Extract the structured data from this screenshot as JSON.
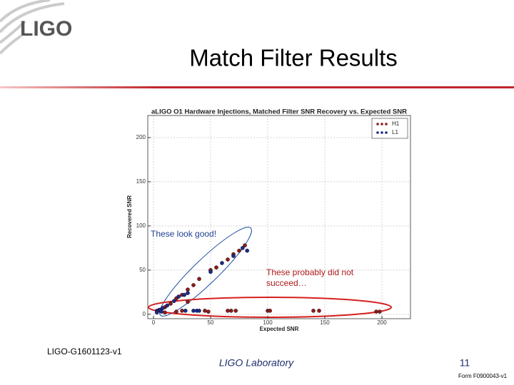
{
  "logo": "LIGO",
  "slide_title": "Match Filter Results",
  "footer": {
    "doc_id": "LIGO-G1601123-v1",
    "lab": "LIGO Laboratory",
    "page": "11",
    "form": "Form F0900043-v1"
  },
  "chart_data": {
    "type": "scatter",
    "title": "aLIGO O1 Hardware Injections, Matched Filter SNR Recovery vs. Expected SNR",
    "x_label": "Expected SNR",
    "y_label": "Recovered SNR",
    "xlim": [
      -5,
      225
    ],
    "ylim": [
      -5,
      225
    ],
    "xticks": [
      0,
      50,
      100,
      150,
      200
    ],
    "yticks": [
      0,
      50,
      100,
      150,
      200
    ],
    "grid": true,
    "legend": "upper right",
    "annotations": [
      "These look good!",
      "These probably did not succeed…"
    ],
    "series": [
      {
        "name": "H1",
        "color": "#8b1c1c",
        "x": [
          5,
          10,
          15,
          20,
          25,
          30,
          35,
          40,
          50,
          55,
          65,
          70,
          75,
          80,
          30,
          10,
          20,
          25,
          45,
          48,
          65,
          68,
          72,
          100,
          102,
          140,
          145,
          195,
          198
        ],
        "values": [
          5,
          8,
          12,
          18,
          22,
          28,
          33,
          40,
          50,
          53,
          62,
          68,
          72,
          78,
          14,
          2,
          3,
          4,
          4,
          3,
          4,
          4,
          4,
          4,
          4,
          4,
          4,
          3,
          3
        ]
      },
      {
        "name": "L1",
        "color": "#1c2a8b",
        "x": [
          3,
          6,
          8,
          12,
          18,
          22,
          27,
          30,
          50,
          60,
          70,
          78,
          82,
          28,
          35,
          38,
          40,
          3,
          7
        ],
        "values": [
          4,
          5,
          7,
          10,
          15,
          20,
          22,
          24,
          48,
          58,
          66,
          75,
          72,
          4,
          4,
          4,
          4,
          2,
          3
        ]
      }
    ]
  }
}
